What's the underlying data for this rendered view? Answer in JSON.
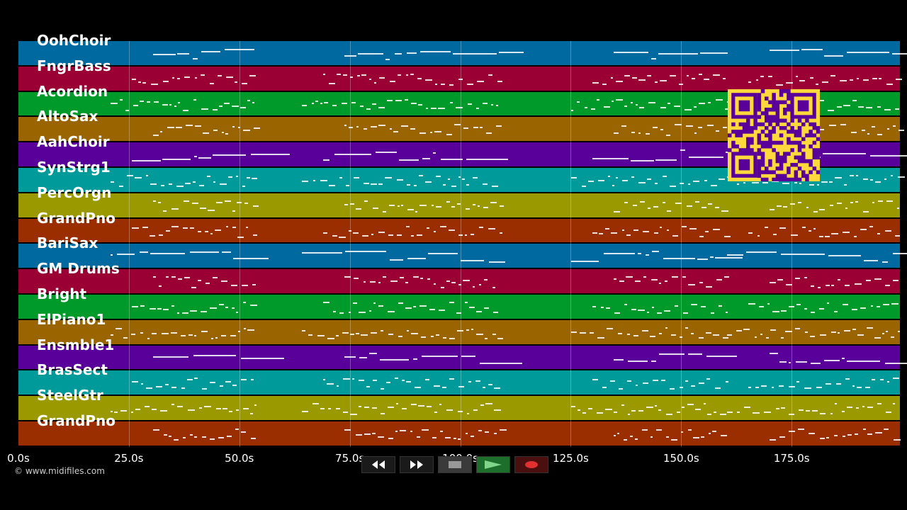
{
  "tracks": [
    {
      "name": "OohChoir",
      "color": "#006aa0"
    },
    {
      "name": "FngrBass",
      "color": "#9a0033"
    },
    {
      "name": "Acordion",
      "color": "#009a2a"
    },
    {
      "name": "AltoSax",
      "color": "#9a6400"
    },
    {
      "name": "AahChoir",
      "color": "#5a009a"
    },
    {
      "name": "SynStrg1",
      "color": "#009a9a"
    },
    {
      "name": "PercOrgn",
      "color": "#9a9a00"
    },
    {
      "name": "GrandPno",
      "color": "#9a2e00"
    },
    {
      "name": "BariSax",
      "color": "#006aa0"
    },
    {
      "name": "GM Drums",
      "color": "#9a0033"
    },
    {
      "name": "Bright",
      "color": "#009a2a"
    },
    {
      "name": "ElPiano1",
      "color": "#9a6400"
    },
    {
      "name": "Ensmble1",
      "color": "#5a009a"
    },
    {
      "name": "BrasSect",
      "color": "#009a9a"
    },
    {
      "name": "SteelGtr",
      "color": "#9a9a00"
    },
    {
      "name": "GrandPno",
      "color": "#9a2e00"
    }
  ],
  "timeline": {
    "ticks": [
      "0.0s",
      "25.0s",
      "50.0s",
      "75.0s",
      "100.0s",
      "125.0s",
      "150.0s",
      "175.0s"
    ],
    "tick_seconds": [
      0,
      25,
      50,
      75,
      100,
      125,
      150,
      175
    ],
    "max_seconds": 199.5
  },
  "transport": {
    "rewind_icon": "rewind-icon",
    "fast_forward_icon": "fast-forward-icon",
    "stop_icon": "stop-icon",
    "play_icon": "play-icon",
    "record_icon": "record-icon"
  },
  "copyright": "© www.midifiles.com",
  "qr_code": {
    "color": "#ffd83b",
    "module_color": "#5a009a"
  }
}
